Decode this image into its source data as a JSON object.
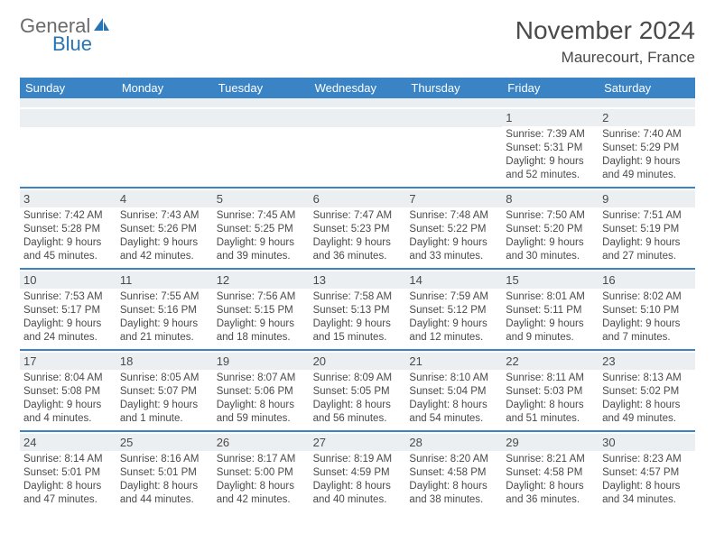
{
  "logo": {
    "general": "General",
    "blue": "Blue"
  },
  "title": "November 2024",
  "location": "Maurecourt, France",
  "colors": {
    "header_bar": "#3a83c4",
    "daynum_bg": "#eceff1",
    "text": "#4a4a4a",
    "logo_gray": "#6b6b6b",
    "logo_blue": "#2874b5",
    "white": "#ffffff"
  },
  "weekdays": [
    "Sunday",
    "Monday",
    "Tuesday",
    "Wednesday",
    "Thursday",
    "Friday",
    "Saturday"
  ],
  "weeks": [
    [
      null,
      null,
      null,
      null,
      null,
      {
        "n": "1",
        "sr": "Sunrise: 7:39 AM",
        "ss": "Sunset: 5:31 PM",
        "dl": "Daylight: 9 hours and 52 minutes."
      },
      {
        "n": "2",
        "sr": "Sunrise: 7:40 AM",
        "ss": "Sunset: 5:29 PM",
        "dl": "Daylight: 9 hours and 49 minutes."
      }
    ],
    [
      {
        "n": "3",
        "sr": "Sunrise: 7:42 AM",
        "ss": "Sunset: 5:28 PM",
        "dl": "Daylight: 9 hours and 45 minutes."
      },
      {
        "n": "4",
        "sr": "Sunrise: 7:43 AM",
        "ss": "Sunset: 5:26 PM",
        "dl": "Daylight: 9 hours and 42 minutes."
      },
      {
        "n": "5",
        "sr": "Sunrise: 7:45 AM",
        "ss": "Sunset: 5:25 PM",
        "dl": "Daylight: 9 hours and 39 minutes."
      },
      {
        "n": "6",
        "sr": "Sunrise: 7:47 AM",
        "ss": "Sunset: 5:23 PM",
        "dl": "Daylight: 9 hours and 36 minutes."
      },
      {
        "n": "7",
        "sr": "Sunrise: 7:48 AM",
        "ss": "Sunset: 5:22 PM",
        "dl": "Daylight: 9 hours and 33 minutes."
      },
      {
        "n": "8",
        "sr": "Sunrise: 7:50 AM",
        "ss": "Sunset: 5:20 PM",
        "dl": "Daylight: 9 hours and 30 minutes."
      },
      {
        "n": "9",
        "sr": "Sunrise: 7:51 AM",
        "ss": "Sunset: 5:19 PM",
        "dl": "Daylight: 9 hours and 27 minutes."
      }
    ],
    [
      {
        "n": "10",
        "sr": "Sunrise: 7:53 AM",
        "ss": "Sunset: 5:17 PM",
        "dl": "Daylight: 9 hours and 24 minutes."
      },
      {
        "n": "11",
        "sr": "Sunrise: 7:55 AM",
        "ss": "Sunset: 5:16 PM",
        "dl": "Daylight: 9 hours and 21 minutes."
      },
      {
        "n": "12",
        "sr": "Sunrise: 7:56 AM",
        "ss": "Sunset: 5:15 PM",
        "dl": "Daylight: 9 hours and 18 minutes."
      },
      {
        "n": "13",
        "sr": "Sunrise: 7:58 AM",
        "ss": "Sunset: 5:13 PM",
        "dl": "Daylight: 9 hours and 15 minutes."
      },
      {
        "n": "14",
        "sr": "Sunrise: 7:59 AM",
        "ss": "Sunset: 5:12 PM",
        "dl": "Daylight: 9 hours and 12 minutes."
      },
      {
        "n": "15",
        "sr": "Sunrise: 8:01 AM",
        "ss": "Sunset: 5:11 PM",
        "dl": "Daylight: 9 hours and 9 minutes."
      },
      {
        "n": "16",
        "sr": "Sunrise: 8:02 AM",
        "ss": "Sunset: 5:10 PM",
        "dl": "Daylight: 9 hours and 7 minutes."
      }
    ],
    [
      {
        "n": "17",
        "sr": "Sunrise: 8:04 AM",
        "ss": "Sunset: 5:08 PM",
        "dl": "Daylight: 9 hours and 4 minutes."
      },
      {
        "n": "18",
        "sr": "Sunrise: 8:05 AM",
        "ss": "Sunset: 5:07 PM",
        "dl": "Daylight: 9 hours and 1 minute."
      },
      {
        "n": "19",
        "sr": "Sunrise: 8:07 AM",
        "ss": "Sunset: 5:06 PM",
        "dl": "Daylight: 8 hours and 59 minutes."
      },
      {
        "n": "20",
        "sr": "Sunrise: 8:09 AM",
        "ss": "Sunset: 5:05 PM",
        "dl": "Daylight: 8 hours and 56 minutes."
      },
      {
        "n": "21",
        "sr": "Sunrise: 8:10 AM",
        "ss": "Sunset: 5:04 PM",
        "dl": "Daylight: 8 hours and 54 minutes."
      },
      {
        "n": "22",
        "sr": "Sunrise: 8:11 AM",
        "ss": "Sunset: 5:03 PM",
        "dl": "Daylight: 8 hours and 51 minutes."
      },
      {
        "n": "23",
        "sr": "Sunrise: 8:13 AM",
        "ss": "Sunset: 5:02 PM",
        "dl": "Daylight: 8 hours and 49 minutes."
      }
    ],
    [
      {
        "n": "24",
        "sr": "Sunrise: 8:14 AM",
        "ss": "Sunset: 5:01 PM",
        "dl": "Daylight: 8 hours and 47 minutes."
      },
      {
        "n": "25",
        "sr": "Sunrise: 8:16 AM",
        "ss": "Sunset: 5:01 PM",
        "dl": "Daylight: 8 hours and 44 minutes."
      },
      {
        "n": "26",
        "sr": "Sunrise: 8:17 AM",
        "ss": "Sunset: 5:00 PM",
        "dl": "Daylight: 8 hours and 42 minutes."
      },
      {
        "n": "27",
        "sr": "Sunrise: 8:19 AM",
        "ss": "Sunset: 4:59 PM",
        "dl": "Daylight: 8 hours and 40 minutes."
      },
      {
        "n": "28",
        "sr": "Sunrise: 8:20 AM",
        "ss": "Sunset: 4:58 PM",
        "dl": "Daylight: 8 hours and 38 minutes."
      },
      {
        "n": "29",
        "sr": "Sunrise: 8:21 AM",
        "ss": "Sunset: 4:58 PM",
        "dl": "Daylight: 8 hours and 36 minutes."
      },
      {
        "n": "30",
        "sr": "Sunrise: 8:23 AM",
        "ss": "Sunset: 4:57 PM",
        "dl": "Daylight: 8 hours and 34 minutes."
      }
    ]
  ]
}
